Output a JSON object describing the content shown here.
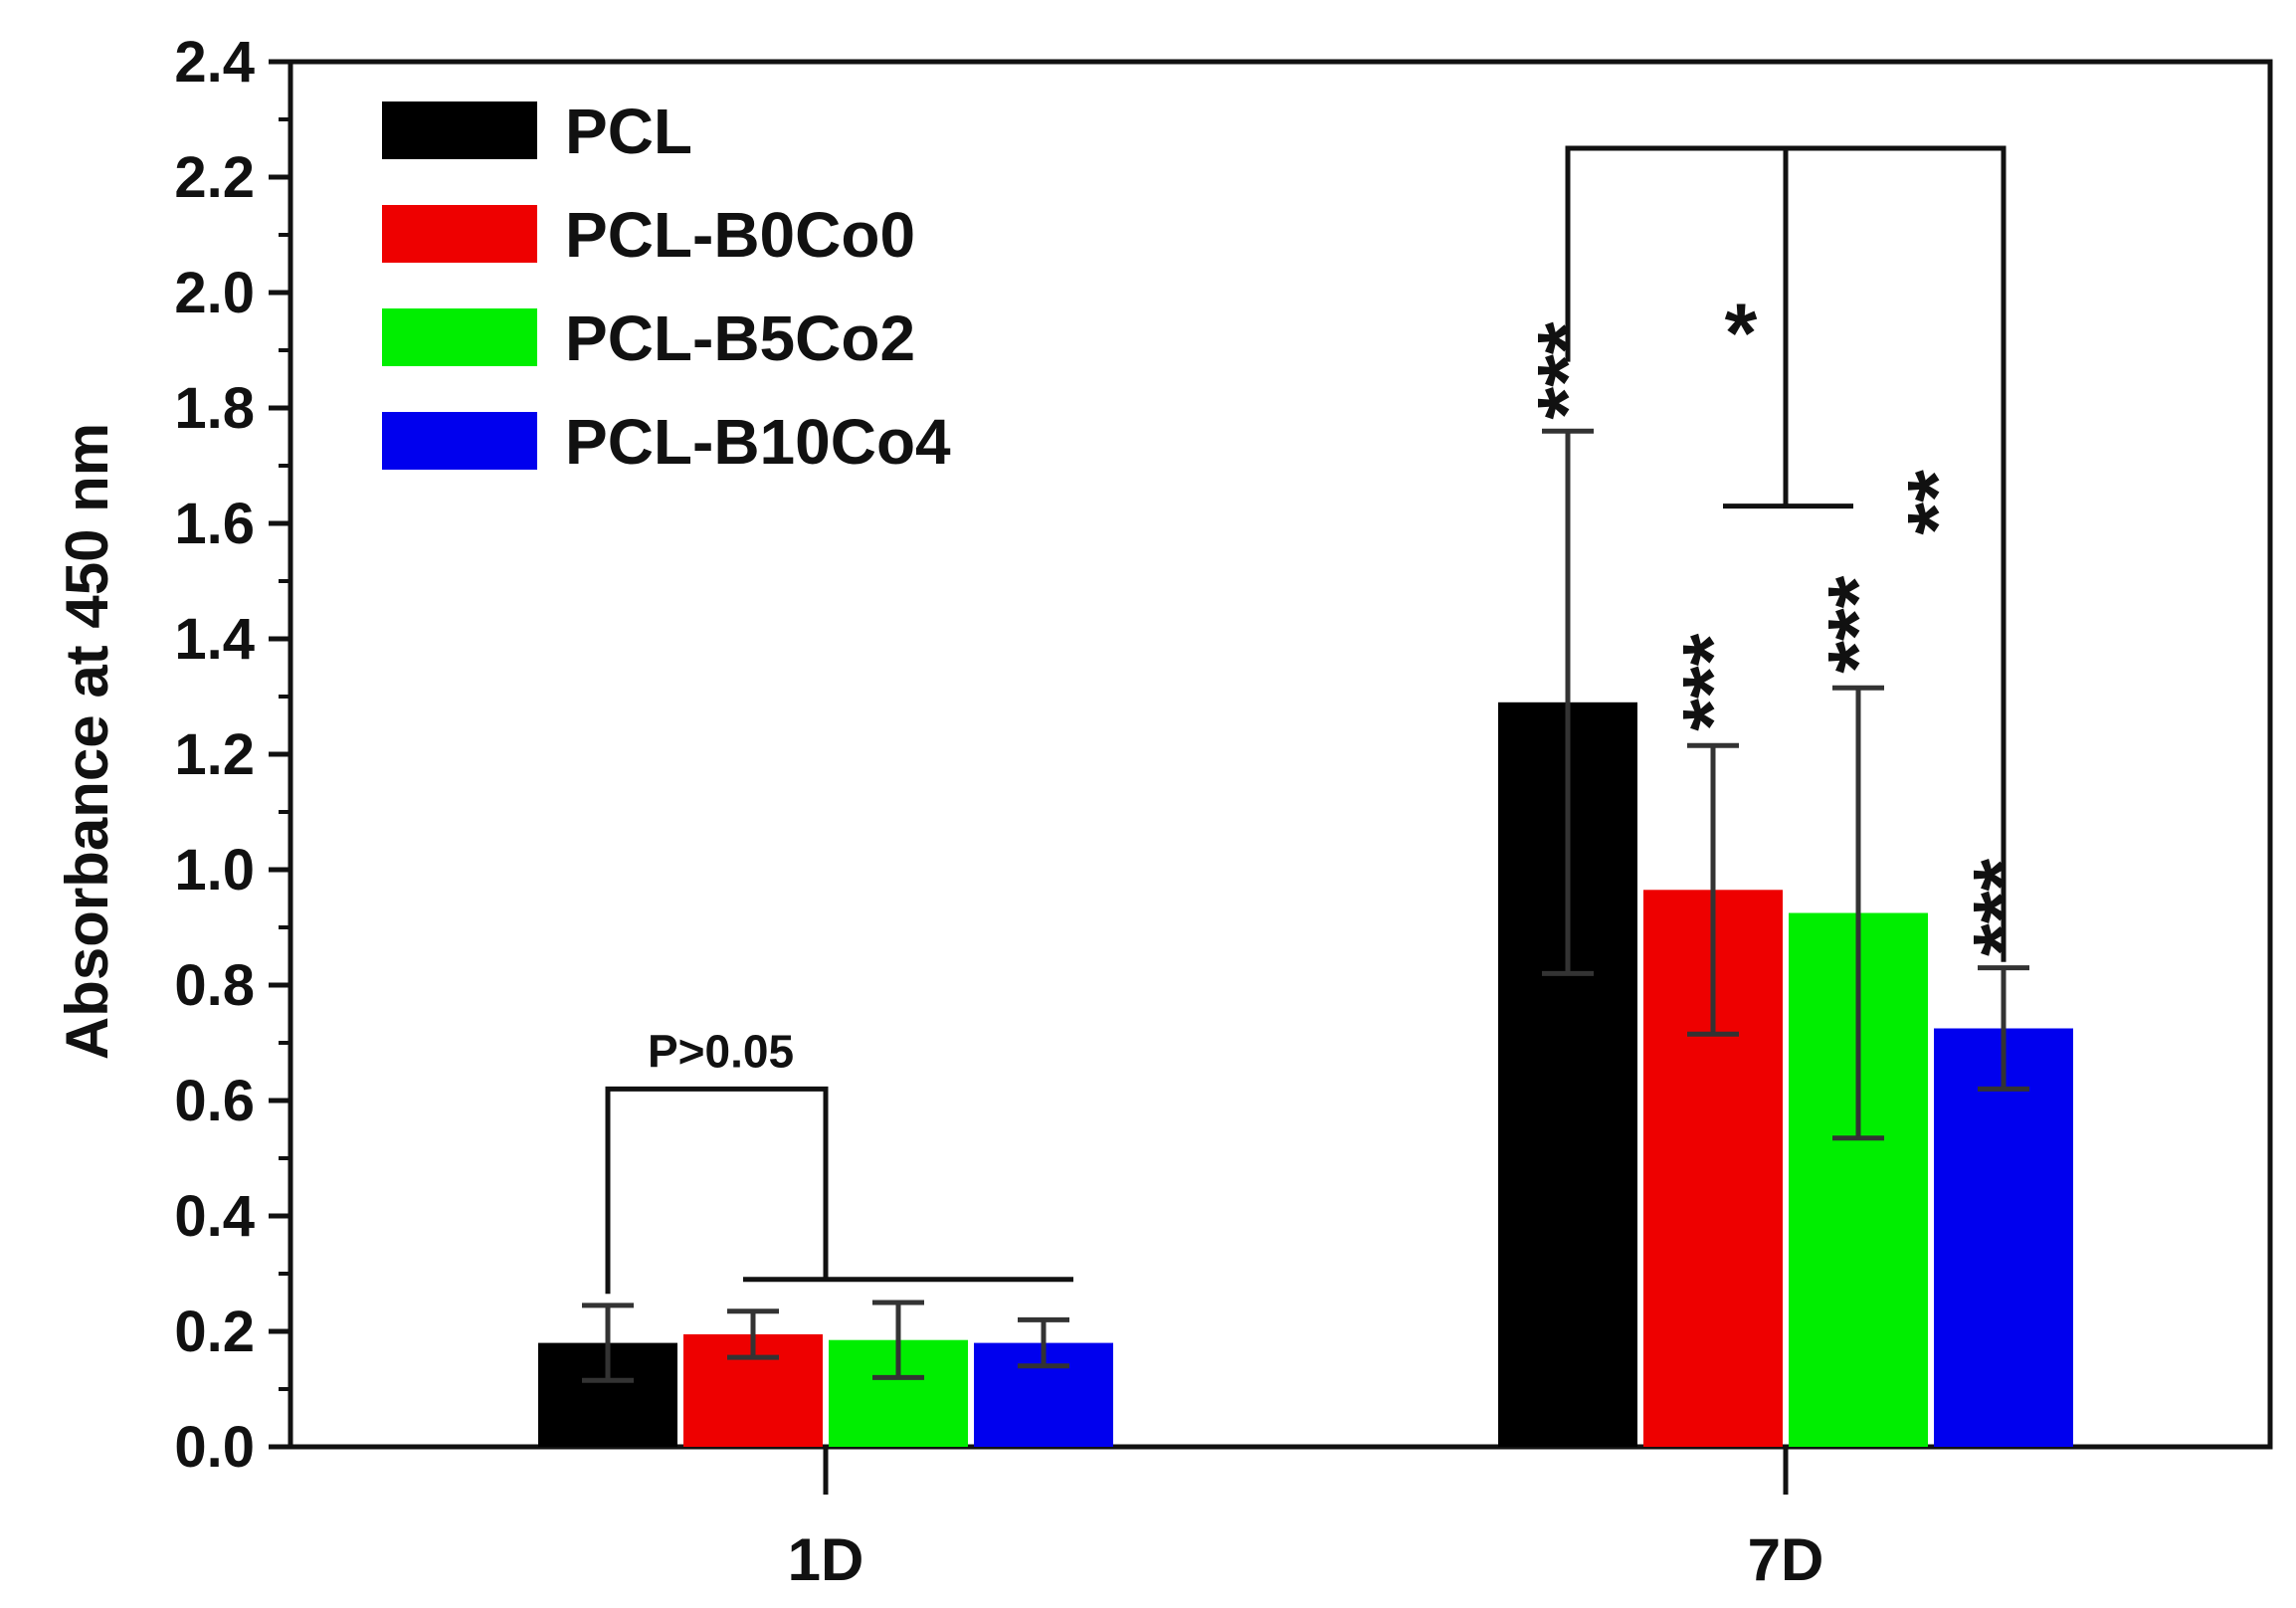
{
  "chart_data": {
    "type": "bar",
    "title": "",
    "xlabel": "",
    "ylabel": "Absorbance at 450 nm",
    "ylim": [
      0.0,
      2.4
    ],
    "yticks": [
      "0.0",
      "0.2",
      "0.4",
      "0.6",
      "0.8",
      "1.0",
      "1.2",
      "1.4",
      "1.6",
      "1.8",
      "2.0",
      "2.2",
      "2.4"
    ],
    "categories": [
      "1D",
      "7D"
    ],
    "legend_position": "top-left",
    "series": [
      {
        "name": "PCL",
        "color": "#000000",
        "values": [
          0.18,
          1.29
        ],
        "errors": [
          0.065,
          0.47
        ]
      },
      {
        "name": "PCL-B0Co0",
        "color": "#ee0000",
        "values": [
          0.195,
          0.965
        ],
        "errors": [
          0.04,
          0.25
        ]
      },
      {
        "name": "PCL-B5Co2",
        "color": "#00ee00",
        "values": [
          0.185,
          0.925
        ],
        "errors": [
          0.065,
          0.39
        ]
      },
      {
        "name": "PCL-B10Co4",
        "color": "#0000ee",
        "values": [
          0.18,
          0.725
        ],
        "errors": [
          0.04,
          0.105
        ]
      }
    ],
    "annotations": [
      {
        "text": "P>0.05",
        "category": "1D"
      },
      {
        "text": "***",
        "category": "7D",
        "series": "PCL"
      },
      {
        "text": "***",
        "category": "7D",
        "series": "PCL-B0Co0"
      },
      {
        "text": "***",
        "category": "7D",
        "series": "PCL-B5Co2"
      },
      {
        "text": "***",
        "category": "7D",
        "series": "PCL-B10Co4"
      },
      {
        "text": "*",
        "category": "7D",
        "comparison": "PCL vs PCL-B0Co0 / PCL-B5Co2"
      },
      {
        "text": "**",
        "category": "7D",
        "comparison": "PCL vs PCL-B10Co4"
      }
    ]
  }
}
